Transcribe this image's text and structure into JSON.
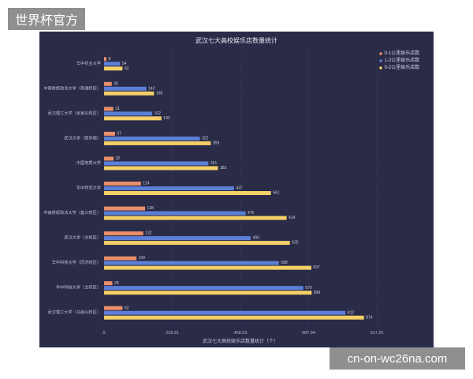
{
  "watermarks": {
    "top_left": "世界杯官方",
    "bottom_right": "cn-on-wc26na.com"
  },
  "chart_data": {
    "type": "bar",
    "orientation": "horizontal",
    "title": "武汉七大高校娱乐店数量统计",
    "xlabel": "武汉七大高校娱乐店数量统计（个）",
    "xlim": [
      0,
      917.25
    ],
    "x_ticks": [
      0,
      229.31,
      458.63,
      687.94,
      917.25
    ],
    "grid": true,
    "legend_position": "top-right",
    "background": "#292b47",
    "categories": [
      "华中农业大学",
      "中南财经政法大学（南湖校区）",
      "武汉理工大学（余家头校区）",
      "武汉大学（医学部）",
      "中国地质大学",
      "华中师范大学",
      "中南财经政法大学（首义校区）",
      "武汉大学（主校区）",
      "华中科技大学（同济校区）",
      "华中科技大学（主校区）",
      "武汉理工大学（马房山校区）"
    ],
    "series": [
      {
        "name": "0-1公里娱乐店数",
        "color": "#ea8e6b",
        "values": [
          8,
          26,
          31,
          37,
          32,
          124,
          138,
          132,
          109,
          28,
          62
        ]
      },
      {
        "name": "1-2公里娱乐店数",
        "color": "#5c7fd8",
        "values": [
          54,
          142,
          162,
          322,
          351,
          437,
          476,
          493,
          588,
          670,
          812
        ]
      },
      {
        "name": "0-2公里娱乐店数",
        "color": "#f3cf68",
        "values": [
          62,
          168,
          193,
          359,
          383,
          561,
          614,
          625,
          697,
          698,
          874
        ]
      }
    ]
  }
}
